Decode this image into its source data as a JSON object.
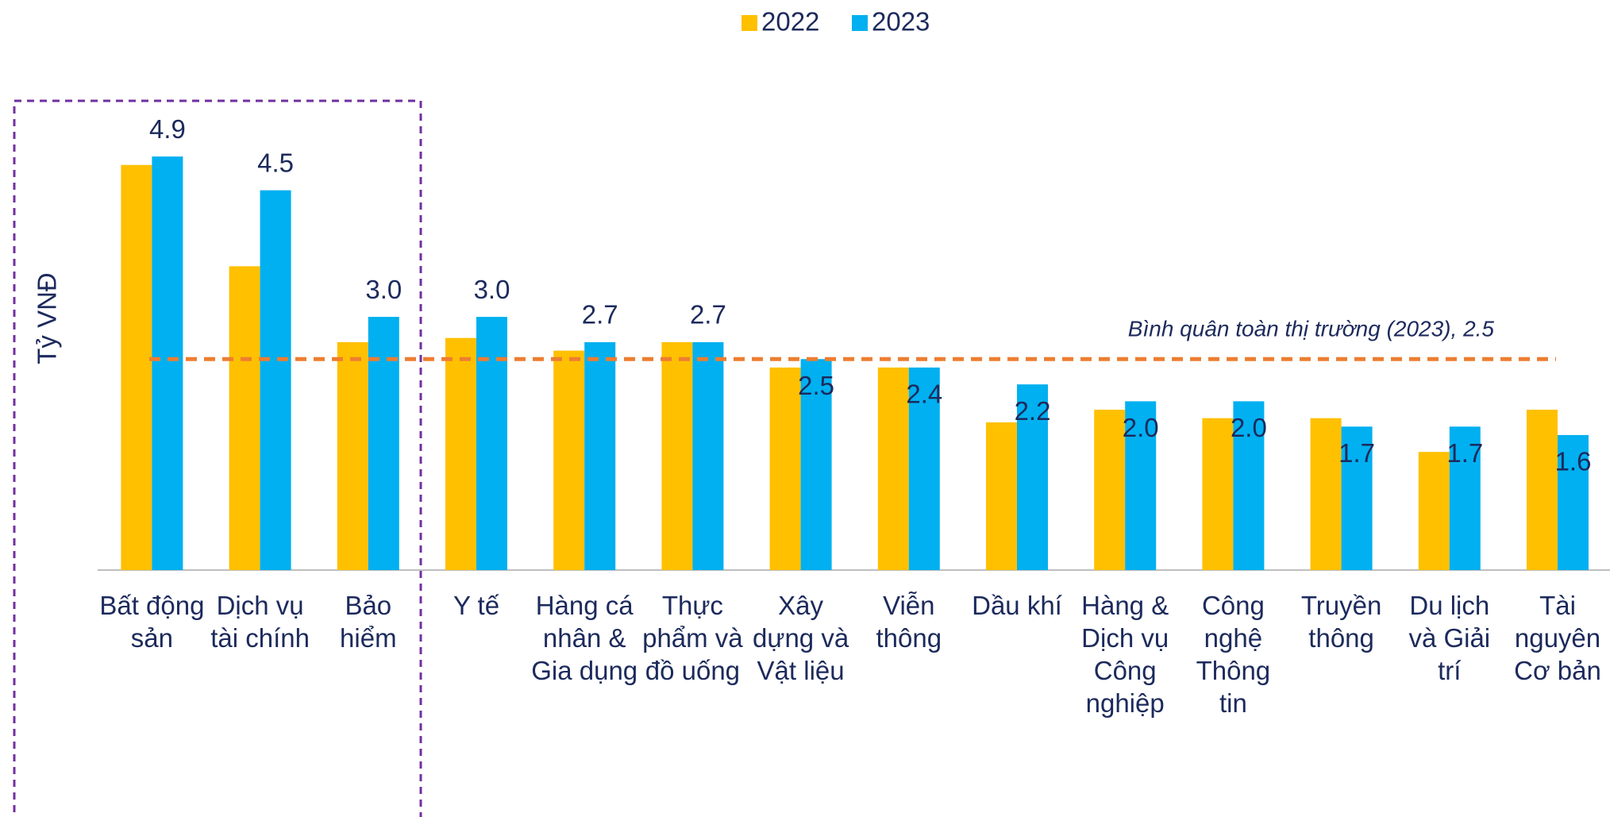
{
  "chart_data": {
    "type": "bar",
    "y_label": "Tỷ VNĐ",
    "categories": [
      "Bất động sản",
      "Dịch vụ tài chính",
      "Bảo hiểm",
      "Y tế",
      "Hàng cá nhân & Gia dụng",
      "Thực phẩm và đồ uống",
      "Xây dựng và Vật liệu",
      "Viễn thông",
      "Dầu khí",
      "Hàng & Dịch vụ Công nghiệp",
      "Công nghệ Thông tin",
      "Truyền thông",
      "Du lịch và Giải trí",
      "Tài nguyên Cơ bản"
    ],
    "series": [
      {
        "name": "2022",
        "color": "#ffc000",
        "values": [
          4.8,
          3.6,
          2.7,
          2.75,
          2.6,
          2.7,
          2.4,
          2.4,
          1.75,
          1.9,
          1.8,
          1.8,
          1.4,
          1.9
        ]
      },
      {
        "name": "2023",
        "color": "#00b0f0",
        "values": [
          4.9,
          4.5,
          3.0,
          3.0,
          2.7,
          2.7,
          2.5,
          2.4,
          2.2,
          2.0,
          2.0,
          1.7,
          1.7,
          1.6
        ],
        "value_labels": [
          "4.9",
          "4.5",
          "3.0",
          "3.0",
          "2.7",
          "2.7",
          "2.5",
          "2.4",
          "2.2",
          "2.0",
          "2.0",
          "1.7",
          "1.7",
          "1.6"
        ]
      }
    ],
    "reference_line": {
      "value": 2.5,
      "label": "Bình quân toàn thị trường (2023), 2.5",
      "color": "#ed7d31"
    },
    "ylim": [
      0,
      5
    ],
    "legend": "top"
  }
}
